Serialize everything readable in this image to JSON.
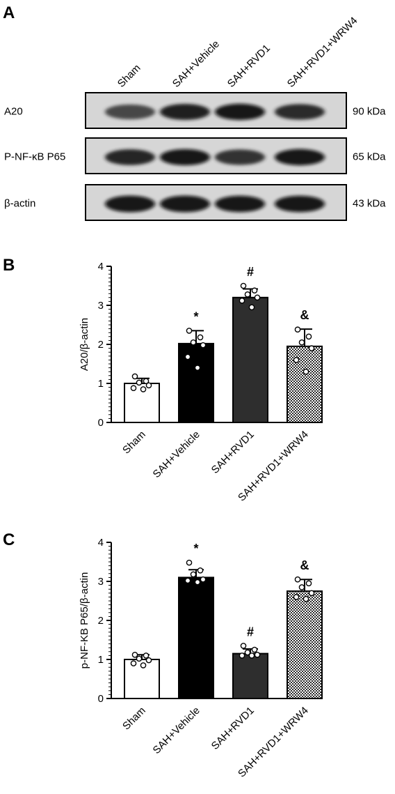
{
  "panels": {
    "a": {
      "letter": "A"
    },
    "b": {
      "letter": "B"
    },
    "c": {
      "letter": "C"
    }
  },
  "blot": {
    "lanes": [
      "Sham",
      "SAH+Vehicle",
      "SAH+RVD1",
      "SAH+RVD1+WRW4"
    ],
    "rows": [
      {
        "label": "A20",
        "size": "90 kDa",
        "intensity": [
          0.55,
          0.85,
          0.9,
          0.75
        ]
      },
      {
        "label": "P-NF-κB P65",
        "size": "65 kDa",
        "intensity": [
          0.8,
          0.88,
          0.7,
          0.9
        ]
      },
      {
        "label": "β-actin",
        "size": "43 kDa",
        "intensity": [
          0.95,
          0.95,
          0.92,
          0.92
        ]
      }
    ]
  },
  "chart_data": [
    {
      "type": "bar",
      "panel": "B",
      "categories": [
        "Sham",
        "SAH+Vehicle",
        "SAH+RVD1",
        "SAH+RVD1+WRW4"
      ],
      "values": [
        1.0,
        2.02,
        3.2,
        1.95
      ],
      "errors": [
        0.13,
        0.33,
        0.22,
        0.44
      ],
      "points": [
        [
          1.18,
          1.06,
          1.02,
          0.95,
          0.88,
          0.85
        ],
        [
          2.35,
          2.18,
          2.05,
          1.98,
          1.68,
          1.4
        ],
        [
          3.5,
          3.38,
          3.28,
          3.2,
          3.12,
          2.95
        ],
        [
          2.38,
          2.2,
          2.05,
          1.9,
          1.6,
          1.3
        ]
      ],
      "significance": [
        "",
        "*",
        "#",
        "&"
      ],
      "ylabel": "A20/β-actin",
      "ylim": [
        0,
        4
      ],
      "yticks": [
        "0",
        "1",
        "2",
        "3",
        "4"
      ],
      "fills": [
        "#ffffff",
        "#000000",
        "#2e2e2e",
        "pattern"
      ]
    },
    {
      "type": "bar",
      "panel": "C",
      "categories": [
        "Sham",
        "SAH+Vehicle",
        "SAH+RVD1",
        "SAH+RVD1+WRW4"
      ],
      "values": [
        1.0,
        3.1,
        1.15,
        2.75
      ],
      "errors": [
        0.12,
        0.2,
        0.12,
        0.3
      ],
      "points": [
        [
          1.12,
          1.1,
          1.02,
          0.98,
          0.9,
          0.85
        ],
        [
          3.48,
          3.28,
          3.18,
          3.05,
          3.02,
          2.98
        ],
        [
          1.35,
          1.25,
          1.18,
          1.12,
          1.1,
          1.1
        ],
        [
          3.05,
          2.95,
          2.85,
          2.7,
          2.6,
          2.55
        ]
      ],
      "significance": [
        "",
        "*",
        "#",
        "&"
      ],
      "ylabel": "p-NF-KB P65/β-actin",
      "ylim": [
        0,
        4
      ],
      "yticks": [
        "0",
        "1",
        "2",
        "3",
        "4"
      ],
      "fills": [
        "#ffffff",
        "#000000",
        "#2e2e2e",
        "pattern"
      ]
    }
  ]
}
